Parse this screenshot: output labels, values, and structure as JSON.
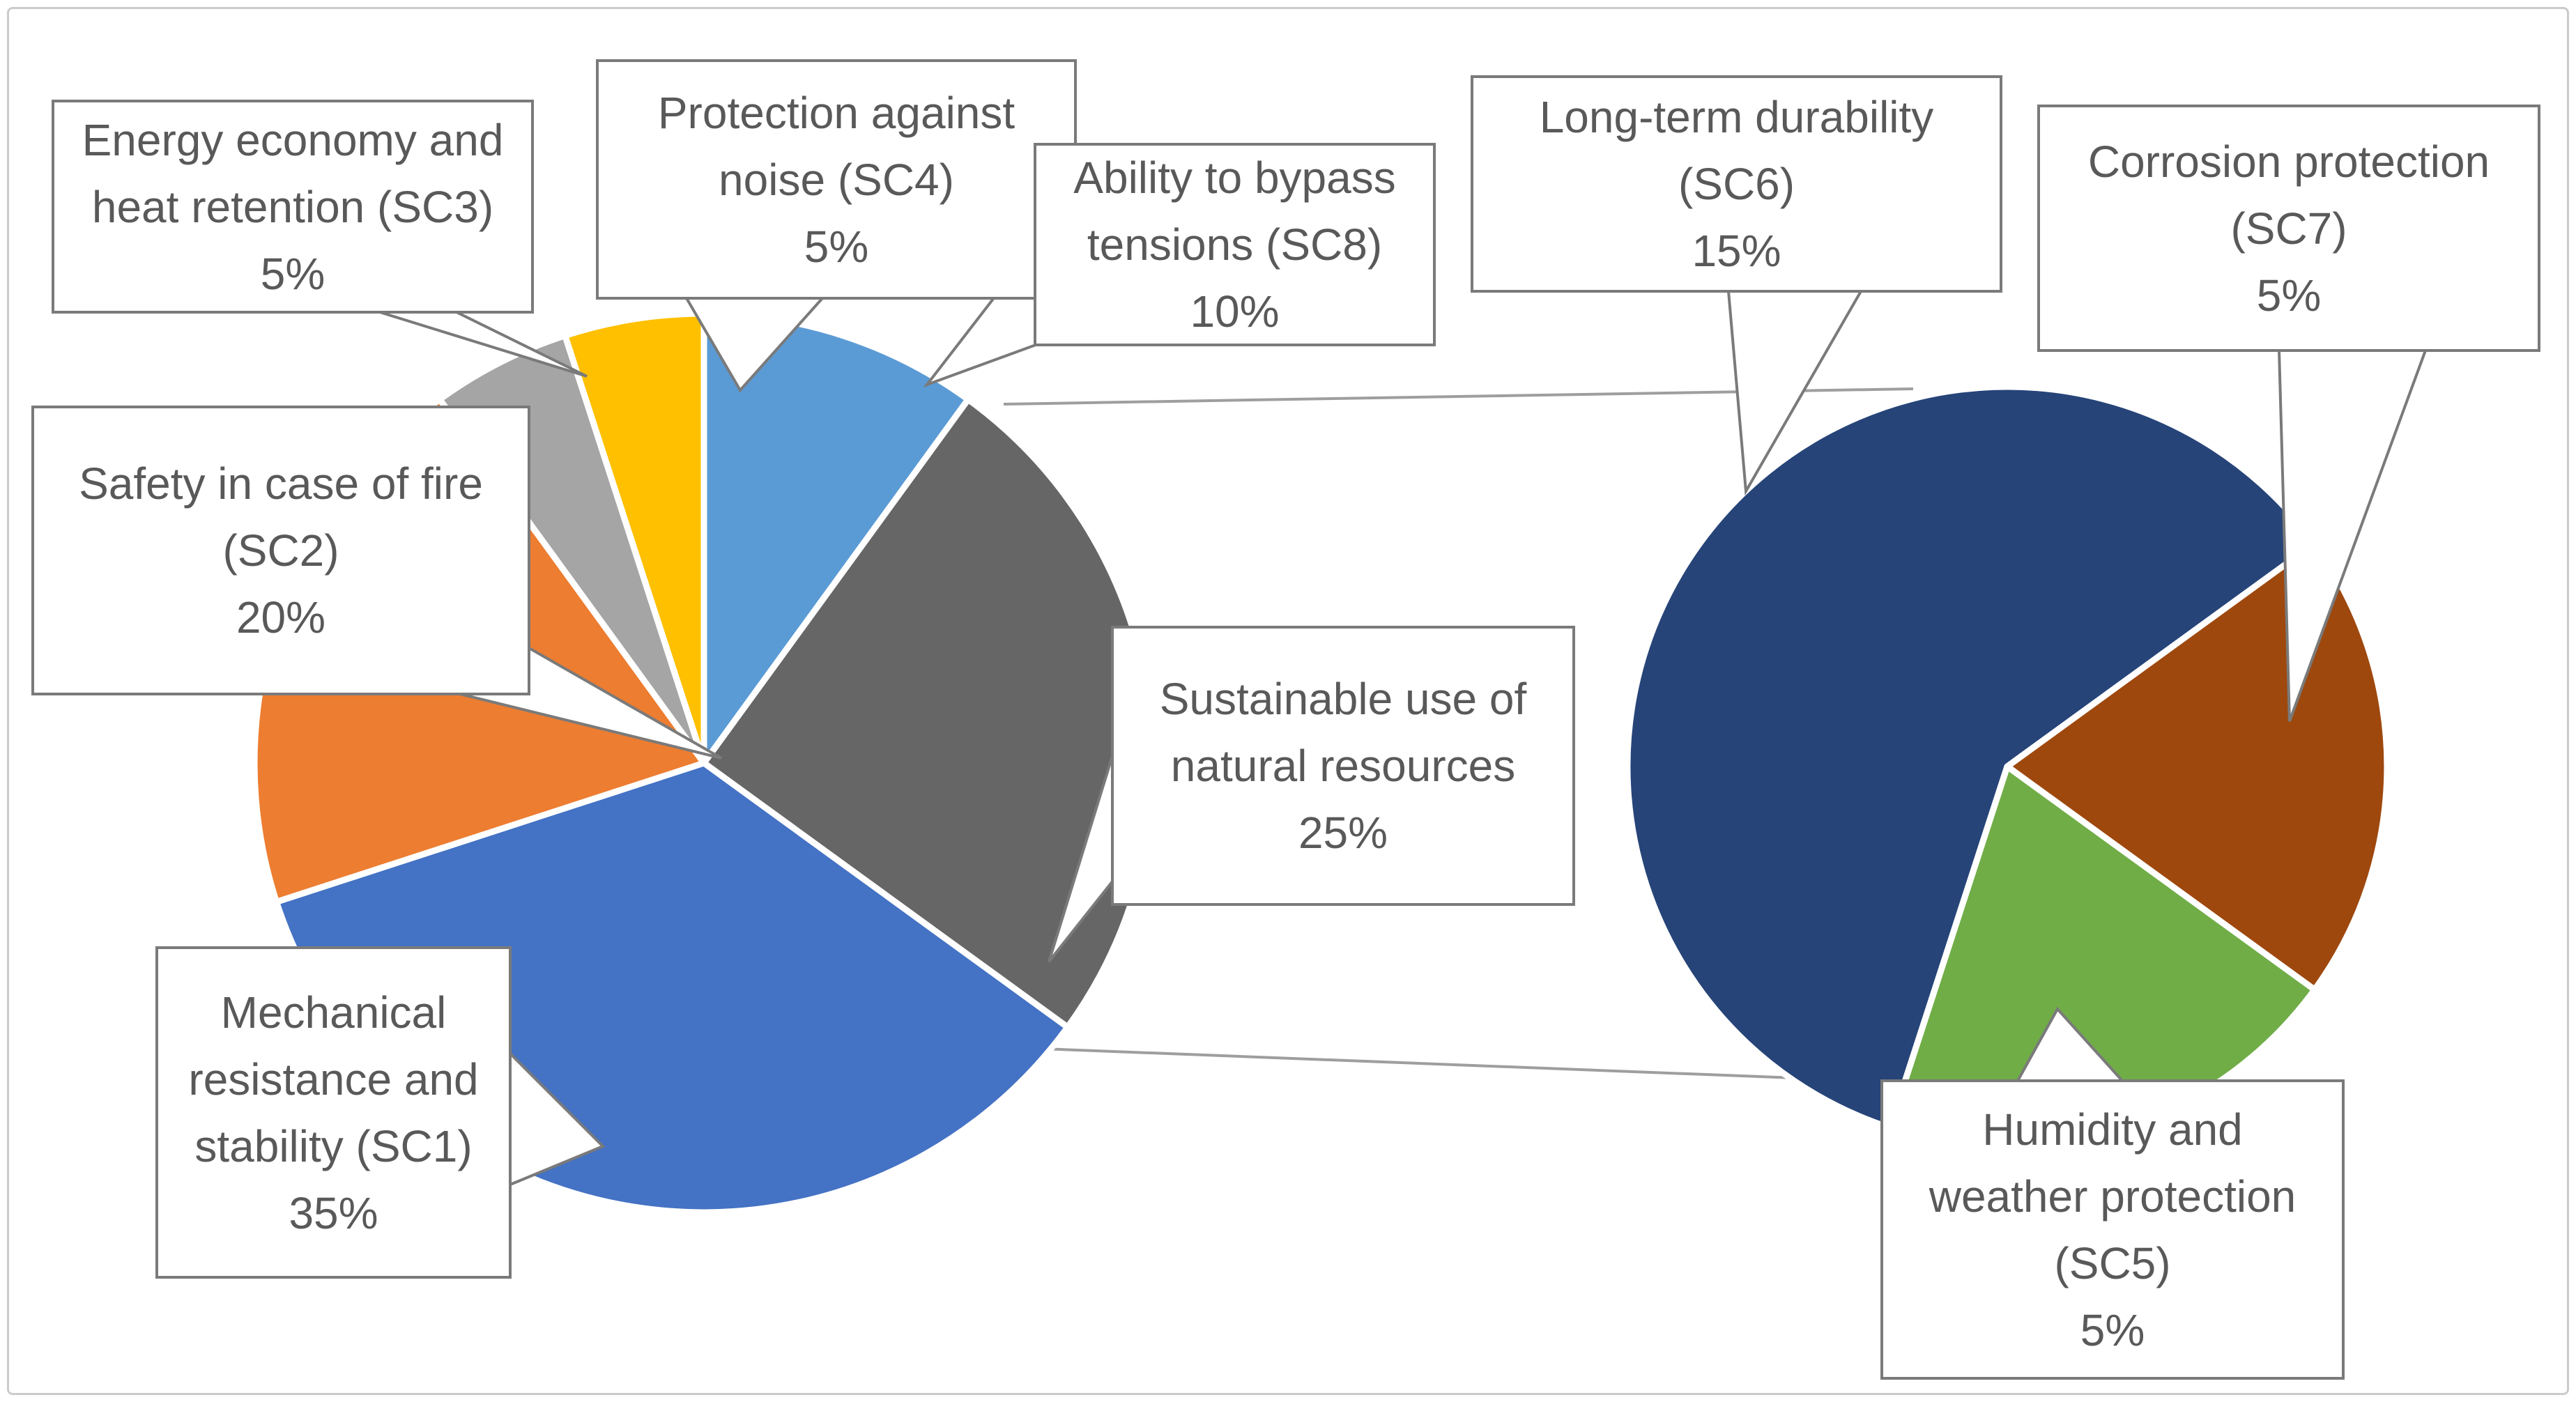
{
  "figure": {
    "type": "pie-of-pie",
    "title": "",
    "background": "#ffffff",
    "border_color": "#cbcbcb"
  },
  "style": {
    "callout_border_color": "#7a7a7a",
    "callout_text_color": "#595959",
    "connector_line_color": "#9e9e9e",
    "slice_gap_color": "#ffffff"
  },
  "chart_data": [
    {
      "type": "pie",
      "position": "left-main",
      "start_angle_deg": 0,
      "legend": "none",
      "slices": [
        {
          "id": "sc8",
          "label": "Ability to bypass tensions (SC8)",
          "value": 10,
          "percent_label": "10%",
          "color": "#5B9BD5"
        },
        {
          "id": "sus",
          "label": "Sustainable use of natural resources",
          "value": 25,
          "percent_label": "25%",
          "color": "#666666"
        },
        {
          "id": "sc1",
          "label": "Mechanical resistance and stability (SC1)",
          "value": 35,
          "percent_label": "35%",
          "color": "#4472C4"
        },
        {
          "id": "sc2",
          "label": "Safety in case of fire (SC2)",
          "value": 20,
          "percent_label": "20%",
          "color": "#ED7D31"
        },
        {
          "id": "sc3",
          "label": "Energy economy and heat retention (SC3)",
          "value": 5,
          "percent_label": "5%",
          "color": "#A5A5A5"
        },
        {
          "id": "sc4",
          "label": "Protection against noise (SC4)",
          "value": 5,
          "percent_label": "5%",
          "color": "#FFC000"
        }
      ]
    },
    {
      "type": "pie",
      "position": "right-secondary",
      "start_angle_deg": 198,
      "legend": "none",
      "slices": [
        {
          "id": "sc6",
          "label": "Long-term durability (SC6)",
          "value": 15,
          "percent_label": "15%",
          "color": "#264478"
        },
        {
          "id": "sc7",
          "label": "Corrosion protection (SC7)",
          "value": 5,
          "percent_label": "5%",
          "color": "#9E480E"
        },
        {
          "id": "sc5",
          "label": "Humidity and weather protection (SC5)",
          "value": 5,
          "percent_label": "5%",
          "color": "#70AD47"
        }
      ]
    }
  ],
  "callouts": [
    {
      "id": "sc3",
      "text": "Energy economy and\nheat retention (SC3)\n5%"
    },
    {
      "id": "sc4",
      "text": "Protection against\nnoise (SC4)\n5%"
    },
    {
      "id": "sc8",
      "text": "Ability to bypass\ntensions (SC8)\n10%"
    },
    {
      "id": "sc6",
      "text": "Long-term durability\n(SC6)\n15%"
    },
    {
      "id": "sc7",
      "text": "Corrosion protection\n(SC7)\n5%"
    },
    {
      "id": "sc2",
      "text": "Safety in case of fire\n(SC2)\n20%"
    },
    {
      "id": "sc1",
      "text": "Mechanical\nresistance and\nstability (SC1)\n35%"
    },
    {
      "id": "sus",
      "text": "Sustainable use of\nnatural resources\n25%"
    },
    {
      "id": "sc5",
      "text": "Humidity and\nweather protection\n(SC5)\n5%"
    }
  ]
}
